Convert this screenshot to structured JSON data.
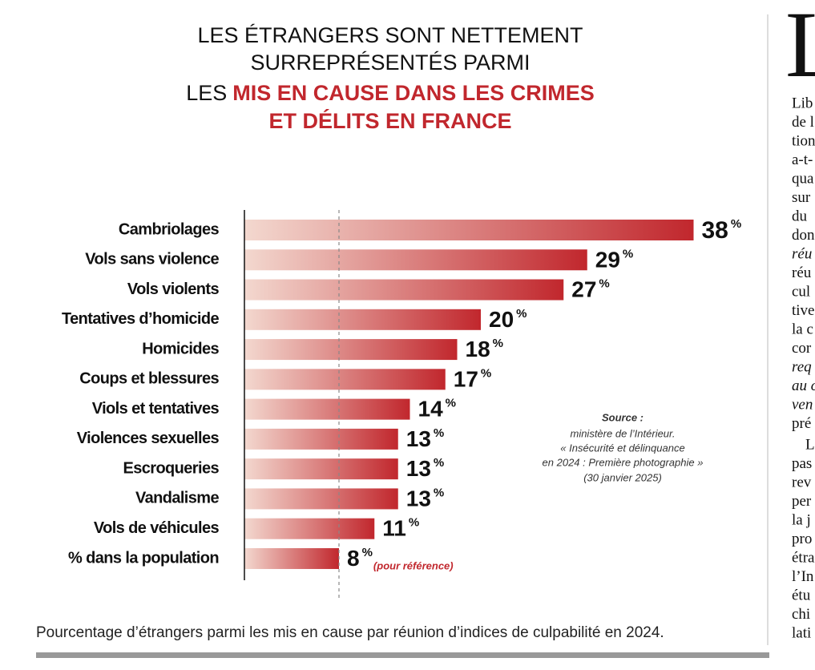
{
  "chart_data": {
    "type": "bar",
    "orientation": "horizontal",
    "title": [
      "LES ÉTRANGERS SONT NETTEMENT",
      "SURREPRÉSENTÉS PARMI",
      "LES",
      "MIS EN CAUSE DANS LES CRIMES",
      "ET DÉLITS EN FRANCE"
    ],
    "categories": [
      "Cambriolages",
      "Vols sans violence",
      "Vols violents",
      "Tentatives d’homicide",
      "Homicides",
      "Coups et blessures",
      "Viols et tentatives",
      "Violences sexuelles",
      "Escroqueries",
      "Vandalisme",
      "Vols de véhicules",
      "% dans la population"
    ],
    "values": [
      38,
      29,
      27,
      20,
      18,
      17,
      14,
      13,
      13,
      13,
      11,
      8
    ],
    "value_labels": [
      "38 %",
      "29 %",
      "27 %",
      "20 %",
      "18 %",
      "17 %",
      "14 %",
      "13 %",
      "13 %",
      "13 %",
      "11 %",
      "8 %"
    ],
    "color": "#c1272d",
    "xlim": [
      0,
      40
    ],
    "reference_annotation": "(pour référence)",
    "source": {
      "heading": "Source :",
      "lines": [
        "ministère de l’Intérieur.",
        "« Insécurité et délinquance",
        "en 2024 : Première photographie »",
        "(30 janvier 2025)"
      ]
    },
    "caption": "Pourcentage d’étrangers parmi les mis en cause par réunion d’indices de culpabilité en 2024."
  },
  "side_column": {
    "drop_cap": "L",
    "lines": [
      {
        "text": "Lib"
      },
      {
        "text": "de l"
      },
      {
        "text": "tion"
      },
      {
        "text": "a-t-"
      },
      {
        "text": "qua"
      },
      {
        "text": "sur"
      },
      {
        "text": "du"
      },
      {
        "text": "don"
      },
      {
        "text": "réu",
        "italic": true
      },
      {
        "text": "réu"
      },
      {
        "text": "cul"
      },
      {
        "text": "tive"
      },
      {
        "text": "la c"
      },
      {
        "text": "cor"
      },
      {
        "text": "req",
        "italic": true
      },
      {
        "text": "au c",
        "italic": true
      },
      {
        "text": "ven",
        "italic": true
      },
      {
        "text": "pré"
      },
      {
        "text": "L",
        "indent": true
      },
      {
        "text": "pas"
      },
      {
        "text": "rev"
      },
      {
        "text": "per"
      },
      {
        "text": "la j"
      },
      {
        "text": "pro"
      },
      {
        "text": "étra"
      },
      {
        "text": "l’In"
      },
      {
        "text": "étu"
      },
      {
        "text": "chi"
      },
      {
        "text": "lati"
      }
    ]
  }
}
